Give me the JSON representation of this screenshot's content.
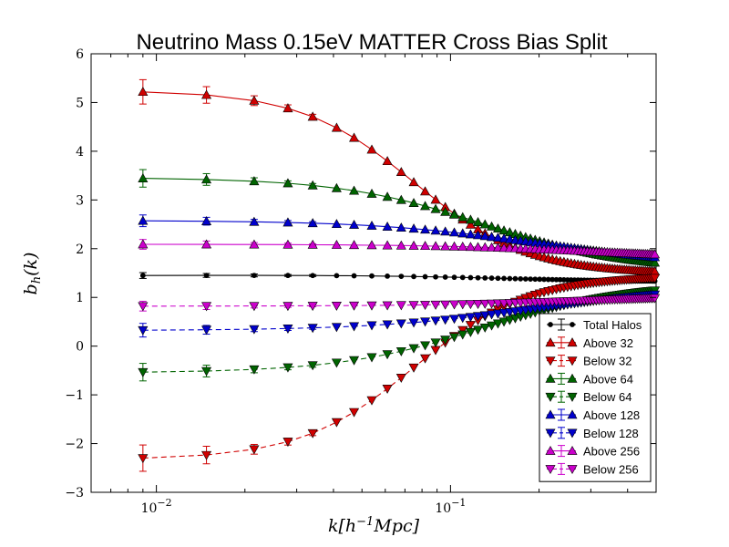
{
  "chart_data": {
    "type": "line",
    "title": "Neutrino Mass 0.15eV MATTER Cross Bias Split",
    "xlabel": "k[h^{-1}Mpc]",
    "ylabel": "b_h(k)",
    "xscale": "log",
    "xlim": [
      0.006,
      0.5
    ],
    "ylim": [
      -3,
      6
    ],
    "yticks": [
      "−3",
      "−2",
      "−1",
      "0",
      "1",
      "2",
      "3",
      "4",
      "5",
      "6"
    ],
    "xticks": [
      {
        "base": "10",
        "exp": "−2",
        "value": 0.01
      },
      {
        "base": "10",
        "exp": "−1",
        "value": 0.1
      }
    ],
    "legend_position": "lower-right",
    "grid": false,
    "x_points_with_markers": [
      0.009,
      0.0148,
      0.0215,
      0.028,
      0.034,
      0.041,
      0.047,
      0.054,
      0.061,
      0.068,
      0.075,
      0.082,
      0.089,
      0.096,
      0.103,
      0.11,
      0.117,
      0.124,
      0.131,
      0.138,
      0.145,
      0.152,
      0.159,
      0.166,
      0.173,
      0.18,
      0.187,
      0.194,
      0.201,
      0.208,
      0.215,
      0.222,
      0.229,
      0.236,
      0.243,
      0.25,
      0.257,
      0.264,
      0.271,
      0.278,
      0.285,
      0.292,
      0.299,
      0.306,
      0.313,
      0.32,
      0.327,
      0.334,
      0.341,
      0.348,
      0.355,
      0.362,
      0.369,
      0.376,
      0.383,
      0.39,
      0.397,
      0.404,
      0.411,
      0.418,
      0.425,
      0.432,
      0.439,
      0.446,
      0.453,
      0.46,
      0.467,
      0.474,
      0.481,
      0.488,
      0.495
    ],
    "series": [
      {
        "name": "Total Halos",
        "color": "#000000",
        "marker": "circle",
        "dashed": false,
        "y_small": 1.45,
        "y_peak": 1.47,
        "y_end": 1.32,
        "transition": 0.14,
        "err": [
          0.06,
          0.04,
          0.03,
          0.02,
          0.02
        ]
      },
      {
        "name": "Above 32",
        "color": "#d00000",
        "marker": "triangle-up",
        "dashed": false,
        "y_small": 5.25,
        "y_end": 1.48,
        "transition": 0.075,
        "width": 0.55,
        "err": [
          0.25,
          0.17,
          0.1,
          0.07,
          0.05
        ]
      },
      {
        "name": "Below 32",
        "color": "#d00000",
        "marker": "triangle-down",
        "dashed": true,
        "y_small": -2.33,
        "y_end": 1.45,
        "transition": 0.075,
        "width": 0.55,
        "err": [
          0.27,
          0.18,
          0.1,
          0.07,
          0.05
        ]
      },
      {
        "name": "Above 64",
        "color": "#006400",
        "marker": "triangle-up",
        "dashed": false,
        "y_small": 3.46,
        "y_end": 1.55,
        "transition": 0.13,
        "width": 0.7,
        "err": [
          0.18,
          0.12,
          0.07,
          0.05,
          0.04
        ]
      },
      {
        "name": "Below 64",
        "color": "#006400",
        "marker": "triangle-down",
        "dashed": true,
        "y_small": -0.55,
        "y_end": 1.3,
        "transition": 0.13,
        "width": 0.7,
        "err": [
          0.18,
          0.12,
          0.07,
          0.05,
          0.04
        ]
      },
      {
        "name": "Above 128",
        "color": "#0000cc",
        "marker": "triangle-up",
        "dashed": false,
        "y_small": 2.58,
        "y_end": 1.64,
        "transition": 0.2,
        "width": 0.8,
        "err": [
          0.12,
          0.08,
          0.05,
          0.04,
          0.03
        ]
      },
      {
        "name": "Below 128",
        "color": "#0000cc",
        "marker": "triangle-down",
        "dashed": true,
        "y_small": 0.32,
        "y_end": 1.24,
        "transition": 0.2,
        "width": 0.8,
        "err": [
          0.14,
          0.09,
          0.05,
          0.04,
          0.03
        ]
      },
      {
        "name": "Above 256",
        "color": "#cc00cc",
        "marker": "triangle-up",
        "dashed": false,
        "y_small": 2.09,
        "y_end": 1.78,
        "transition": 0.32,
        "width": 0.8,
        "err": [
          0.1,
          0.07,
          0.04,
          0.03,
          0.02
        ]
      },
      {
        "name": "Below 256",
        "color": "#cc00cc",
        "marker": "triangle-down",
        "dashed": true,
        "y_small": 0.82,
        "y_end": 1.07,
        "transition": 0.32,
        "width": 0.8,
        "err": [
          0.1,
          0.07,
          0.04,
          0.03,
          0.02
        ]
      }
    ]
  }
}
